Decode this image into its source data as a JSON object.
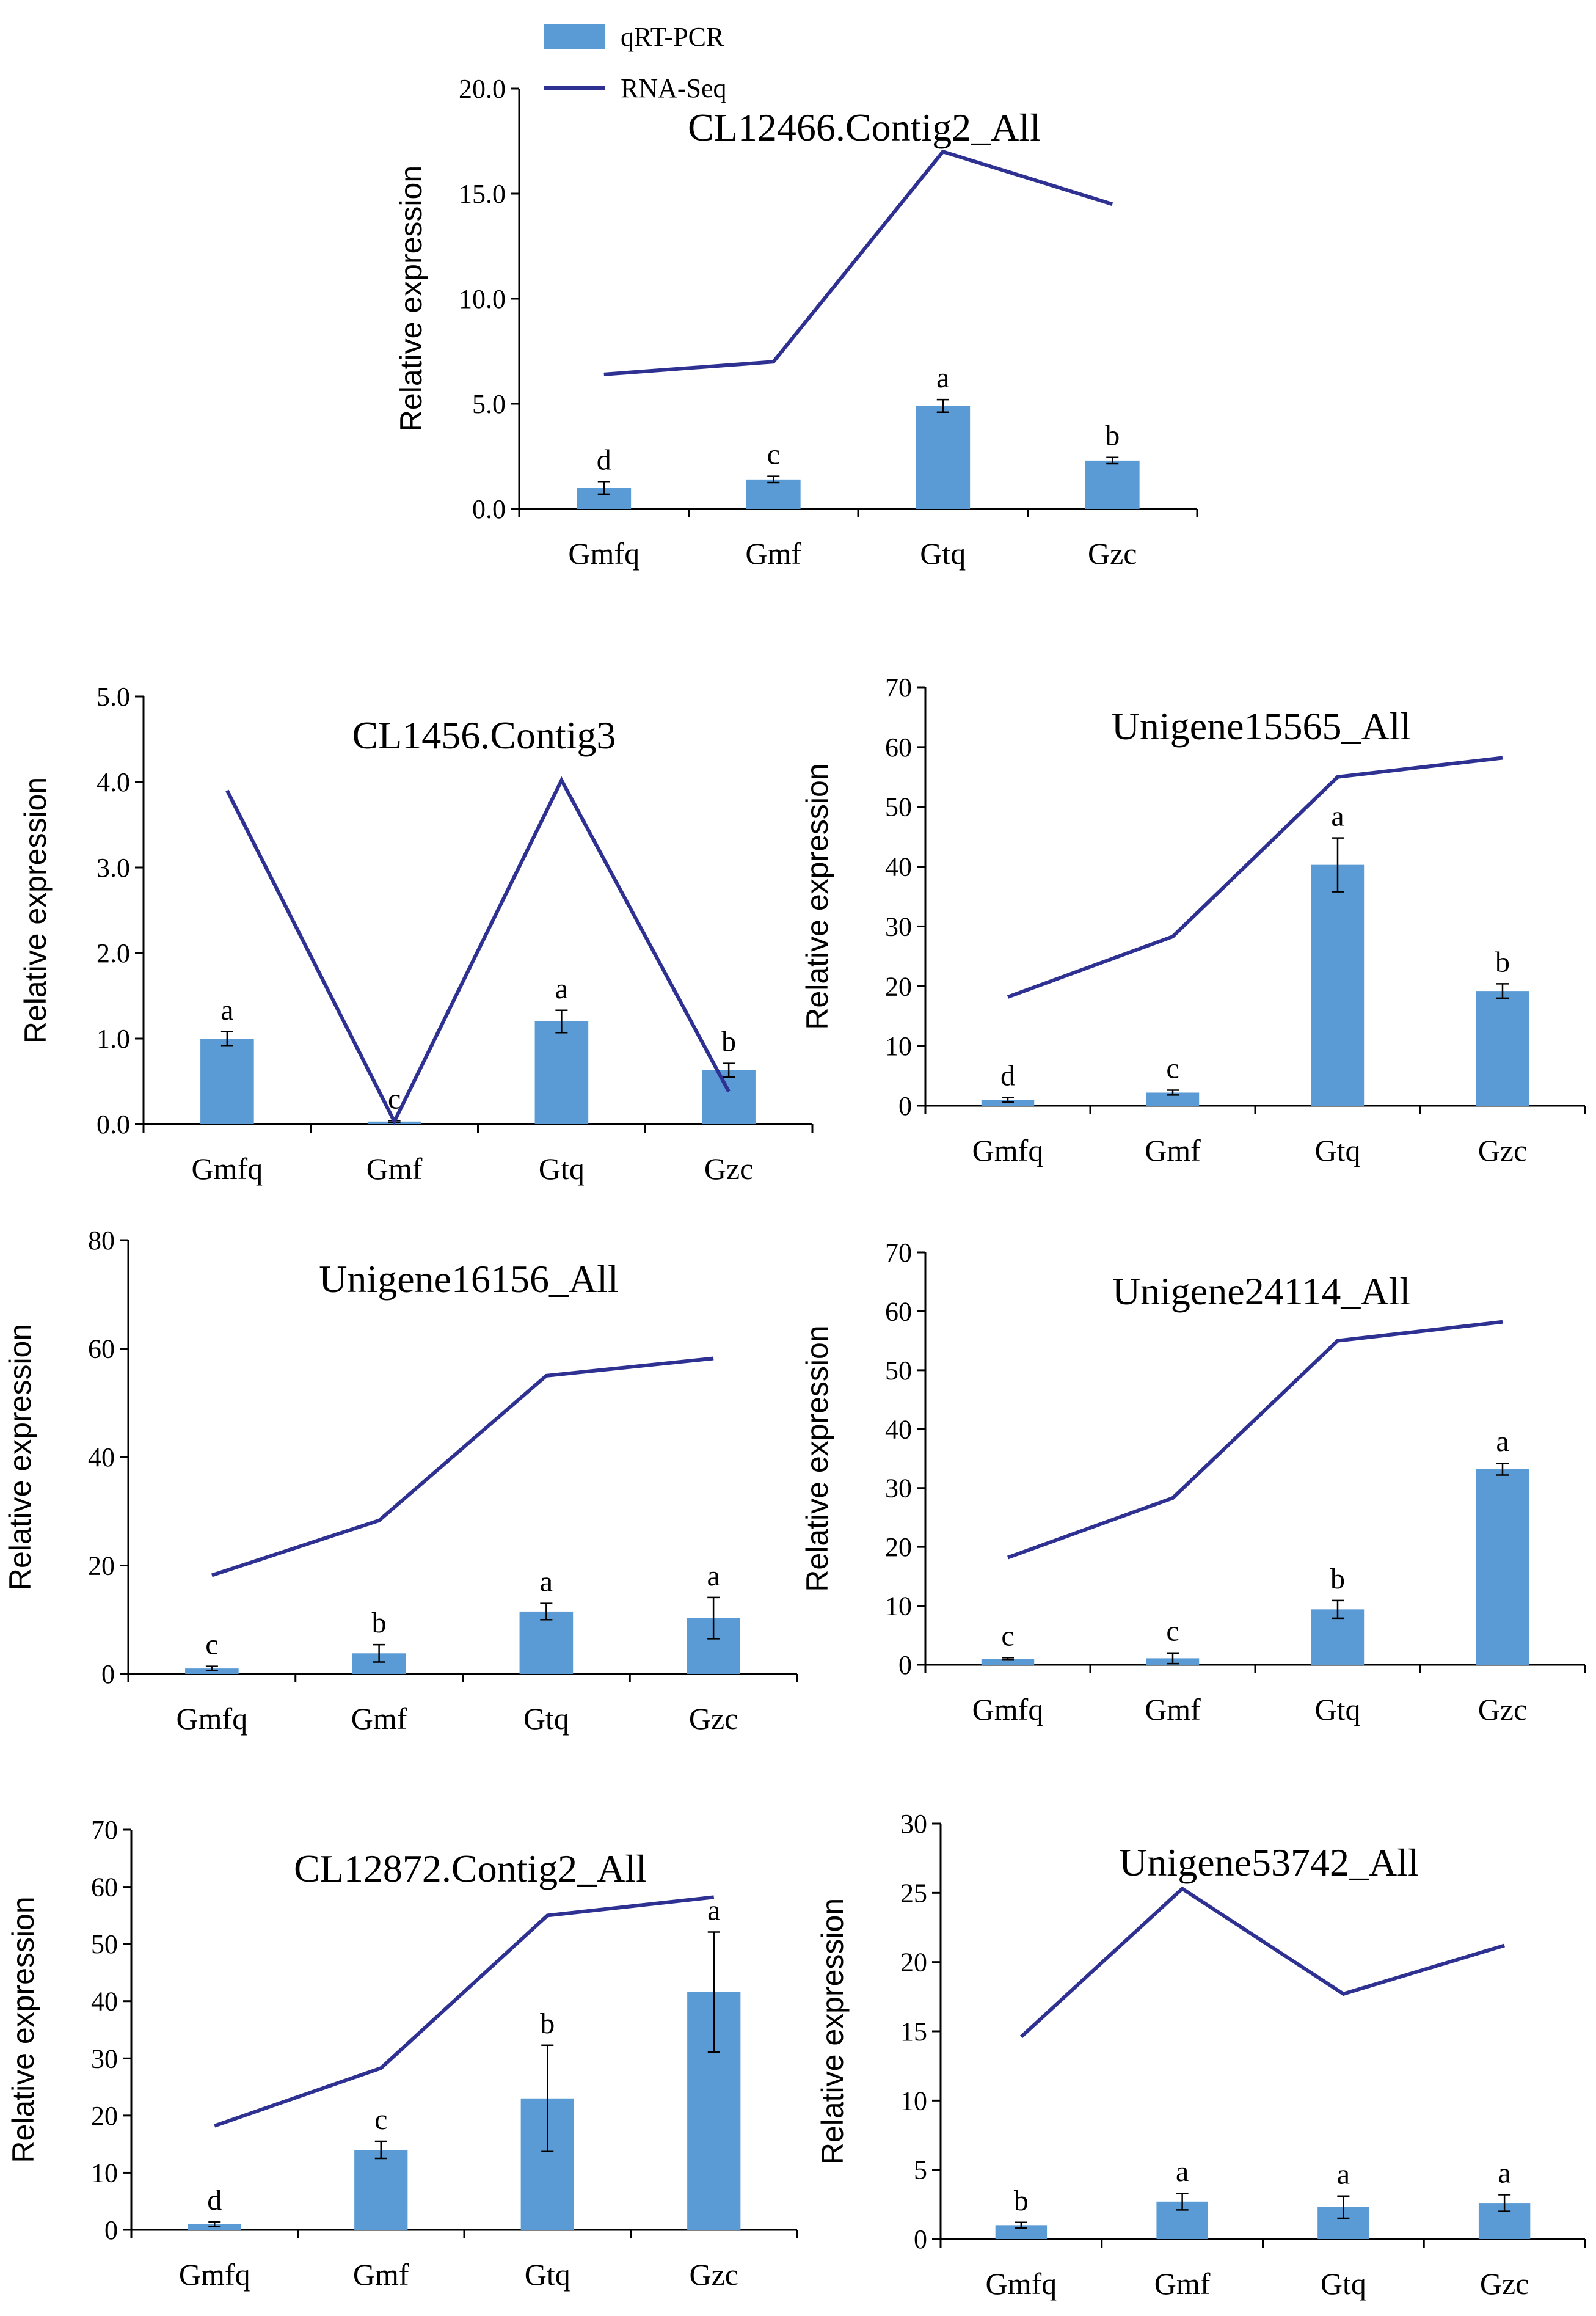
{
  "legend": {
    "bar_label": "qRT-PCR",
    "line_label": "RNA-Seq",
    "bar_color": "#5b9bd5",
    "line_color": "#2e3192"
  },
  "chart_data": [
    {
      "type": "bar",
      "title": "CL12466.Contig2_All",
      "ylabel": "Relative expression",
      "xlabel": "",
      "categories": [
        "Gmfq",
        "Gmf",
        "Gtq",
        "Gzc"
      ],
      "ylim": [
        0,
        20
      ],
      "yticks": [
        "0.0",
        "5.0",
        "10.0",
        "15.0",
        "20.0"
      ],
      "series": [
        {
          "name": "qRT-PCR",
          "kind": "bar",
          "values": [
            1.0,
            1.4,
            4.9,
            2.3
          ],
          "errors": [
            0.3,
            0.15,
            0.3,
            0.15
          ],
          "letters": [
            "d",
            "c",
            "a",
            "b"
          ]
        },
        {
          "name": "RNA-Seq",
          "kind": "line",
          "values": [
            6.4,
            7.0,
            17.0,
            14.5
          ]
        }
      ]
    },
    {
      "type": "bar",
      "title": "CL1456.Contig3",
      "ylabel": "Relative expression",
      "xlabel": "",
      "categories": [
        "Gmfq",
        "Gmf",
        "Gtq",
        "Gzc"
      ],
      "ylim": [
        0,
        5
      ],
      "yticks": [
        "0.0",
        "1.0",
        "2.0",
        "3.0",
        "4.0",
        "5.0"
      ],
      "series": [
        {
          "name": "qRT-PCR",
          "kind": "bar",
          "values": [
            1.0,
            0.03,
            1.2,
            0.63
          ],
          "errors": [
            0.08,
            0.01,
            0.13,
            0.08
          ],
          "letters": [
            "a",
            "c",
            "a",
            "b"
          ]
        },
        {
          "name": "RNA-Seq",
          "kind": "line",
          "values": [
            3.9,
            0.03,
            4.02,
            0.38
          ]
        }
      ]
    },
    {
      "type": "bar",
      "title": "Unigene15565_All",
      "ylabel": "Relative expression",
      "xlabel": "",
      "categories": [
        "Gmfq",
        "Gmf",
        "Gtq",
        "Gzc"
      ],
      "ylim": [
        0,
        70
      ],
      "yticks": [
        "0",
        "10",
        "20",
        "30",
        "40",
        "50",
        "60",
        "70"
      ],
      "series": [
        {
          "name": "qRT-PCR",
          "kind": "bar",
          "values": [
            1.0,
            2.2,
            40.3,
            19.2
          ],
          "errors": [
            0.4,
            0.4,
            4.5,
            1.2
          ],
          "letters": [
            "d",
            "c",
            "a",
            "b"
          ]
        },
        {
          "name": "RNA-Seq",
          "kind": "line",
          "values": [
            18.2,
            28.3,
            55.0,
            58.2
          ]
        }
      ]
    },
    {
      "type": "bar",
      "title": "Unigene16156_All",
      "ylabel": "Relative expression",
      "xlabel": "",
      "categories": [
        "Gmfq",
        "Gmf",
        "Gtq",
        "Gzc"
      ],
      "ylim": [
        0,
        80
      ],
      "yticks": [
        "0",
        "20",
        "40",
        "60",
        "80"
      ],
      "series": [
        {
          "name": "qRT-PCR",
          "kind": "bar",
          "values": [
            1.0,
            3.8,
            11.5,
            10.3
          ],
          "errors": [
            0.4,
            1.6,
            1.5,
            3.8
          ],
          "letters": [
            "c",
            "b",
            "a",
            "a"
          ]
        },
        {
          "name": "RNA-Seq",
          "kind": "line",
          "values": [
            18.2,
            28.3,
            55.0,
            58.2
          ]
        }
      ]
    },
    {
      "type": "bar",
      "title": "Unigene24114_All",
      "ylabel": "Relative expression",
      "xlabel": "",
      "categories": [
        "Gmfq",
        "Gmf",
        "Gtq",
        "Gzc"
      ],
      "ylim": [
        0,
        70
      ],
      "yticks": [
        "0",
        "10",
        "20",
        "30",
        "40",
        "50",
        "60",
        "70"
      ],
      "series": [
        {
          "name": "qRT-PCR",
          "kind": "bar",
          "values": [
            1.0,
            1.1,
            9.4,
            33.2
          ],
          "errors": [
            0.2,
            0.9,
            1.5,
            1.0
          ],
          "letters": [
            "c",
            "c",
            "b",
            "a"
          ]
        },
        {
          "name": "RNA-Seq",
          "kind": "line",
          "values": [
            18.2,
            28.3,
            55.0,
            58.2
          ]
        }
      ]
    },
    {
      "type": "bar",
      "title": "CL12872.Contig2_All",
      "ylabel": "Relative expression",
      "xlabel": "",
      "categories": [
        "Gmfq",
        "Gmf",
        "Gtq",
        "Gzc"
      ],
      "ylim": [
        0,
        70
      ],
      "yticks": [
        "0",
        "10",
        "20",
        "30",
        "40",
        "50",
        "60",
        "70"
      ],
      "series": [
        {
          "name": "qRT-PCR",
          "kind": "bar",
          "values": [
            1.0,
            14.0,
            23.0,
            41.6
          ],
          "errors": [
            0.4,
            1.5,
            9.3,
            10.5
          ],
          "letters": [
            "d",
            "c",
            "b",
            "a"
          ]
        },
        {
          "name": "RNA-Seq",
          "kind": "line",
          "values": [
            18.2,
            28.3,
            55.0,
            58.2
          ]
        }
      ]
    },
    {
      "type": "bar",
      "title": "Unigene53742_All",
      "ylabel": "Relative expression",
      "xlabel": "",
      "categories": [
        "Gmfq",
        "Gmf",
        "Gtq",
        "Gzc"
      ],
      "ylim": [
        0,
        30
      ],
      "yticks": [
        "0",
        "5",
        "10",
        "15",
        "20",
        "25",
        "30"
      ],
      "series": [
        {
          "name": "qRT-PCR",
          "kind": "bar",
          "values": [
            1.0,
            2.7,
            2.3,
            2.6
          ],
          "errors": [
            0.2,
            0.6,
            0.8,
            0.6
          ],
          "letters": [
            "b",
            "a",
            "a",
            "a"
          ]
        },
        {
          "name": "RNA-Seq",
          "kind": "line",
          "values": [
            14.6,
            25.3,
            17.7,
            21.2
          ]
        }
      ]
    }
  ]
}
